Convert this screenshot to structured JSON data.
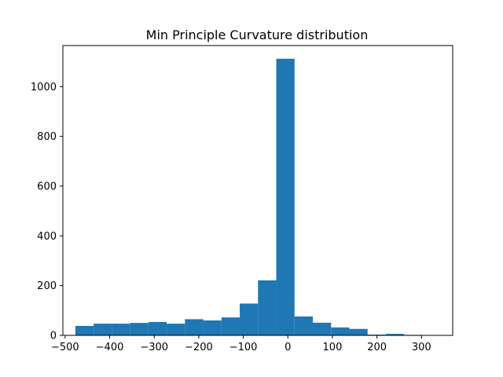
{
  "chart_data": {
    "type": "bar",
    "title": "Min Principle Curvature distribution",
    "xlabel": "",
    "ylabel": "",
    "xlim": [
      -505,
      370
    ],
    "ylim": [
      0,
      1165
    ],
    "x_ticks": [
      -500,
      -400,
      -300,
      -200,
      -100,
      0,
      100,
      200,
      300
    ],
    "x_tick_labels": [
      "−500",
      "−400",
      "−300",
      "−200",
      "−100",
      "0",
      "100",
      "200",
      "300"
    ],
    "y_ticks": [
      0,
      200,
      400,
      600,
      800,
      1000
    ],
    "y_tick_labels": [
      "0",
      "200",
      "400",
      "600",
      "800",
      "1000"
    ],
    "bar_color": "#1f77b4",
    "grid": false,
    "bins": [
      {
        "x0": -477,
        "x1": -436,
        "count": 38
      },
      {
        "x0": -436,
        "x1": -395,
        "count": 47
      },
      {
        "x0": -395,
        "x1": -354,
        "count": 47
      },
      {
        "x0": -354,
        "x1": -313,
        "count": 50
      },
      {
        "x0": -313,
        "x1": -272,
        "count": 54
      },
      {
        "x0": -272,
        "x1": -231,
        "count": 47
      },
      {
        "x0": -231,
        "x1": -190,
        "count": 65
      },
      {
        "x0": -190,
        "x1": -149,
        "count": 60
      },
      {
        "x0": -149,
        "x1": -108,
        "count": 72
      },
      {
        "x0": -108,
        "x1": -67,
        "count": 128
      },
      {
        "x0": -67,
        "x1": -26,
        "count": 221
      },
      {
        "x0": -26,
        "x1": 15,
        "count": 1112
      },
      {
        "x0": 15,
        "x1": 56,
        "count": 76
      },
      {
        "x0": 56,
        "x1": 97,
        "count": 51
      },
      {
        "x0": 97,
        "x1": 138,
        "count": 32
      },
      {
        "x0": 138,
        "x1": 179,
        "count": 26
      },
      {
        "x0": 179,
        "x1": 220,
        "count": 3
      },
      {
        "x0": 220,
        "x1": 261,
        "count": 6
      },
      {
        "x0": 261,
        "x1": 302,
        "count": 2
      },
      {
        "x0": 302,
        "x1": 343,
        "count": 1
      }
    ]
  }
}
